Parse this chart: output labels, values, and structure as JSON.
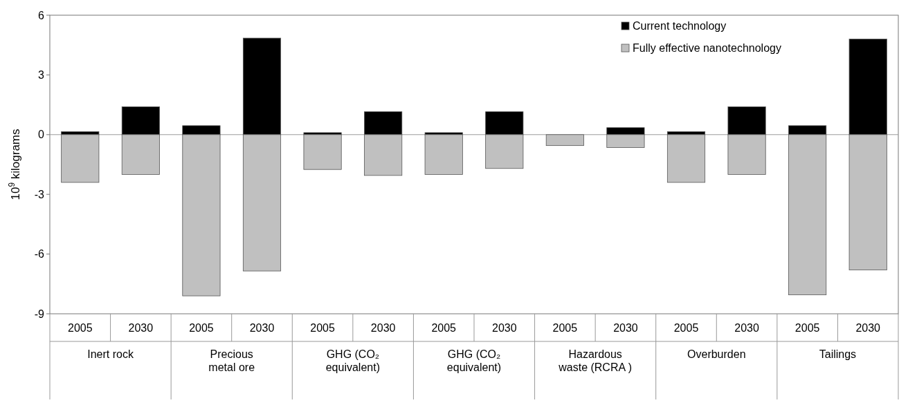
{
  "chart_data": {
    "type": "bar",
    "stacked": true,
    "ylabel": "10$^{9}$ kilograms",
    "categories": [
      "2005",
      "2030",
      "2005",
      "2030",
      "2005",
      "2030",
      "2005",
      "2030",
      "2005",
      "2030",
      "2005",
      "2030",
      "2005",
      "2030"
    ],
    "series": [
      {
        "name": "Current technology",
        "color": "#000000",
        "values": [
          0.15,
          1.4,
          0.45,
          4.85,
          0.1,
          1.15,
          0.1,
          1.15,
          null,
          0.35,
          0.15,
          1.4,
          0.45,
          4.8
        ]
      },
      {
        "name": "Fully effective nanotechnology",
        "color": "#c0c0c0",
        "values": [
          -2.4,
          -2.0,
          -8.1,
          -6.85,
          -1.75,
          -2.05,
          -2.0,
          -1.7,
          -0.55,
          -0.65,
          -2.4,
          -2.0,
          -8.05,
          -6.8
        ]
      }
    ],
    "ylim": [
      -9,
      6
    ],
    "yticks": [
      -9,
      -6,
      -3,
      0,
      3,
      6
    ],
    "legend": "top right",
    "annotations": [
      "Inert rock",
      "Precious metal ore",
      "GHG (CO₂ equivalent)",
      "GHG (CO₂ equivalent)",
      "Hazardous waste (RCRA )",
      "Overburden",
      "Tailings"
    ]
  }
}
